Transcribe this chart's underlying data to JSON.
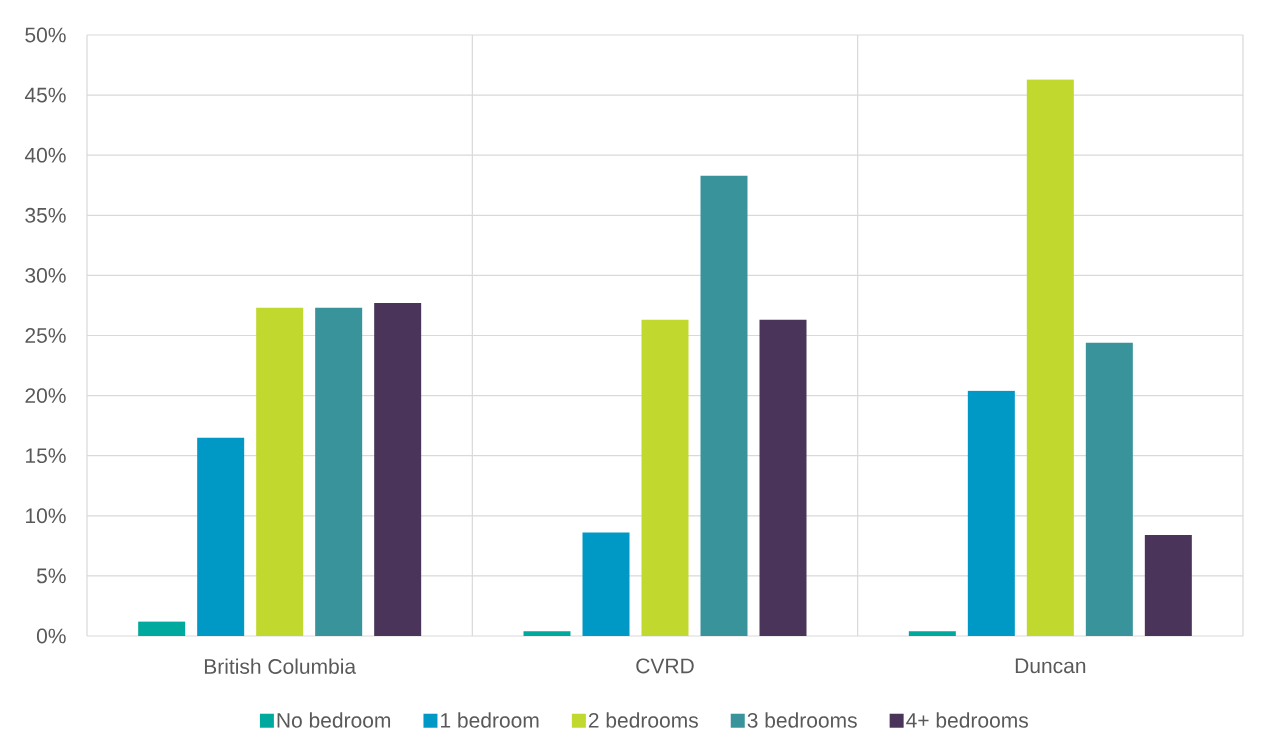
{
  "chart_data": {
    "type": "bar",
    "categories": [
      "British Columbia",
      "CVRD",
      "Duncan"
    ],
    "series": [
      {
        "name": "No bedroom",
        "color": "#00a99d",
        "values": [
          1.2,
          0.4,
          0.4
        ]
      },
      {
        "name": "1 bedroom",
        "color": "#0099c6",
        "values": [
          16.5,
          8.6,
          20.4
        ]
      },
      {
        "name": "2 bedrooms",
        "color": "#c1d82f",
        "values": [
          27.3,
          26.3,
          46.3
        ]
      },
      {
        "name": "3 bedrooms",
        "color": "#38939b",
        "values": [
          27.3,
          38.3,
          24.4
        ]
      },
      {
        "name": "4+ bedrooms",
        "color": "#4a3459",
        "values": [
          27.7,
          26.3,
          8.4
        ]
      }
    ],
    "ylim": [
      0,
      50
    ],
    "yticks": [
      {
        "value": 0,
        "label": "0%"
      },
      {
        "value": 5,
        "label": "5%"
      },
      {
        "value": 10,
        "label": "10%"
      },
      {
        "value": 15,
        "label": "15%"
      },
      {
        "value": 20,
        "label": "20%"
      },
      {
        "value": 25,
        "label": "25%"
      },
      {
        "value": 30,
        "label": "30%"
      },
      {
        "value": 35,
        "label": "35%"
      },
      {
        "value": 40,
        "label": "40%"
      },
      {
        "value": 45,
        "label": "45%"
      },
      {
        "value": 50,
        "label": "50%"
      }
    ],
    "grid": true,
    "legend": "bottom"
  }
}
